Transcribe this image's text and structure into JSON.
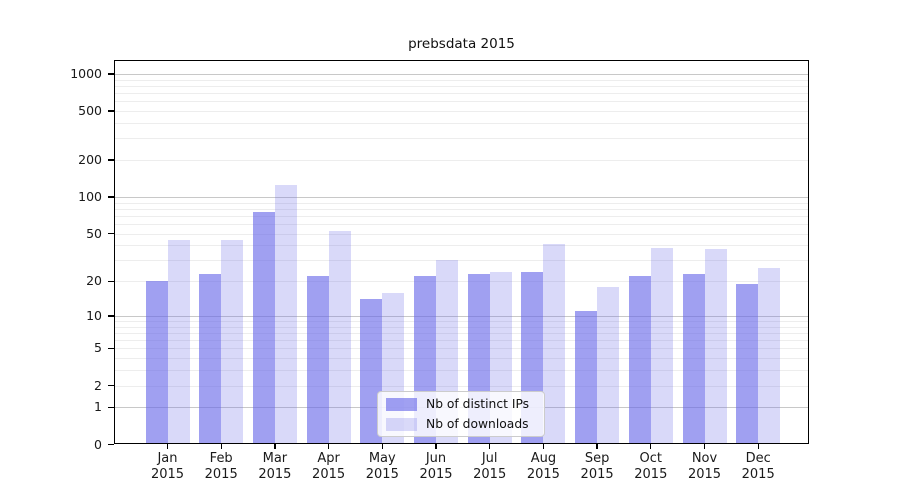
{
  "title": "prebsdata 2015",
  "legend": {
    "items": [
      {
        "label": "Nb of distinct IPs",
        "color": "rgba(102,102,232,0.62)"
      },
      {
        "label": "Nb of downloads",
        "color": "rgba(102,102,232,0.25)"
      }
    ]
  },
  "axes": {
    "y_tick_labels": [
      "0",
      "1",
      "2",
      "5",
      "10",
      "20",
      "50",
      "100",
      "200",
      "500",
      "1000"
    ],
    "x_tick_labels": [
      "Jan\n2015",
      "Feb\n2015",
      "Mar\n2015",
      "Apr\n2015",
      "May\n2015",
      "Jun\n2015",
      "Jul\n2015",
      "Aug\n2015",
      "Sep\n2015",
      "Oct\n2015",
      "Nov\n2015",
      "Dec\n2015"
    ]
  },
  "colors": {
    "series_ips": "rgba(102,102,232,0.62)",
    "series_downloads": "rgba(102,102,232,0.25)",
    "grid_major": "#c8c8c8",
    "grid_minor": "#ededed",
    "frame": "#000000"
  },
  "chart_data": {
    "type": "bar",
    "title": "prebsdata 2015",
    "categories": [
      "Jan 2015",
      "Feb 2015",
      "Mar 2015",
      "Apr 2015",
      "May 2015",
      "Jun 2015",
      "Jul 2015",
      "Aug 2015",
      "Sep 2015",
      "Oct 2015",
      "Nov 2015",
      "Dec 2015"
    ],
    "series": [
      {
        "name": "Nb of distinct IPs",
        "values": [
          20,
          23,
          75,
          22,
          14,
          22,
          23,
          24,
          11,
          22,
          23,
          19
        ]
      },
      {
        "name": "Nb of downloads",
        "values": [
          44,
          44,
          125,
          53,
          16,
          30,
          24,
          41,
          18,
          38,
          37,
          26
        ]
      }
    ],
    "xlabel": "",
    "ylabel": "",
    "y_scale": "log(1+v)",
    "y_ticks": [
      0,
      1,
      2,
      5,
      10,
      20,
      50,
      100,
      200,
      500,
      1000
    ],
    "y_minor_gridlines": [
      2,
      3,
      4,
      5,
      6,
      7,
      8,
      9,
      20,
      30,
      40,
      50,
      60,
      70,
      80,
      90,
      200,
      300,
      400,
      500,
      600,
      700,
      800,
      900
    ],
    "y_major_gridlines": [
      1,
      10,
      100,
      1000
    ],
    "ylim": [
      0,
      1360
    ],
    "grid": "horizontal, major + minor, behind translucent bars",
    "legend_position": "inside lower-center"
  }
}
